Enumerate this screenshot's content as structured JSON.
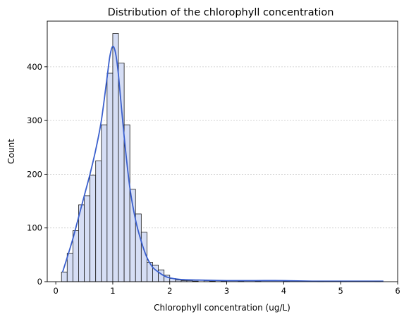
{
  "chart_data": {
    "type": "bar",
    "subtype": "histogram-with-kde",
    "title": "Distribution of the chlorophyll concentration",
    "xlabel": "Chlorophyll concentration (ug/L)",
    "ylabel": "Count",
    "xlim": [
      -0.15,
      6.0
    ],
    "ylim": [
      0,
      485
    ],
    "xticks": [
      0,
      1,
      2,
      3,
      4,
      5,
      6
    ],
    "yticks": [
      0,
      100,
      200,
      300,
      400
    ],
    "grid": "horizontal-dotted",
    "colors": {
      "bar_fill": "#d6def5",
      "bar_edge": "#1a1a1a",
      "kde_line": "#3a5fcd"
    },
    "bin_width": 0.1,
    "bins": [
      {
        "x0": 0.1,
        "count": 18
      },
      {
        "x0": 0.2,
        "count": 53
      },
      {
        "x0": 0.3,
        "count": 95
      },
      {
        "x0": 0.4,
        "count": 143
      },
      {
        "x0": 0.5,
        "count": 160
      },
      {
        "x0": 0.6,
        "count": 198
      },
      {
        "x0": 0.7,
        "count": 225
      },
      {
        "x0": 0.8,
        "count": 292
      },
      {
        "x0": 0.9,
        "count": 388
      },
      {
        "x0": 1.0,
        "count": 462
      },
      {
        "x0": 1.1,
        "count": 407
      },
      {
        "x0": 1.2,
        "count": 292
      },
      {
        "x0": 1.3,
        "count": 172
      },
      {
        "x0": 1.4,
        "count": 126
      },
      {
        "x0": 1.5,
        "count": 92
      },
      {
        "x0": 1.6,
        "count": 36
      },
      {
        "x0": 1.7,
        "count": 31
      },
      {
        "x0": 1.8,
        "count": 22
      },
      {
        "x0": 1.9,
        "count": 12
      },
      {
        "x0": 2.0,
        "count": 6
      },
      {
        "x0": 2.1,
        "count": 3
      },
      {
        "x0": 2.2,
        "count": 2
      },
      {
        "x0": 2.3,
        "count": 2
      },
      {
        "x0": 2.4,
        "count": 1
      },
      {
        "x0": 2.6,
        "count": 2
      },
      {
        "x0": 2.7,
        "count": 1
      },
      {
        "x0": 2.9,
        "count": 1
      },
      {
        "x0": 3.2,
        "count": 1
      },
      {
        "x0": 3.5,
        "count": 1
      },
      {
        "x0": 4.0,
        "count": 1
      },
      {
        "x0": 4.6,
        "count": 1
      },
      {
        "x0": 5.0,
        "count": 1
      },
      {
        "x0": 5.6,
        "count": 1
      }
    ],
    "kde": {
      "x": [
        0.12,
        0.2,
        0.3,
        0.4,
        0.5,
        0.6,
        0.7,
        0.8,
        0.9,
        0.95,
        1.0,
        1.05,
        1.1,
        1.2,
        1.3,
        1.4,
        1.5,
        1.6,
        1.7,
        1.8,
        1.9,
        2.0,
        2.2,
        2.5,
        3.0,
        3.5,
        4.0,
        4.5,
        5.0,
        5.5,
        5.75
      ],
      "y": [
        18,
        45,
        80,
        120,
        160,
        200,
        245,
        300,
        380,
        420,
        438,
        425,
        385,
        270,
        175,
        115,
        75,
        45,
        27,
        18,
        11,
        7,
        4,
        3,
        2,
        2,
        2,
        1,
        1,
        1,
        1
      ]
    }
  }
}
